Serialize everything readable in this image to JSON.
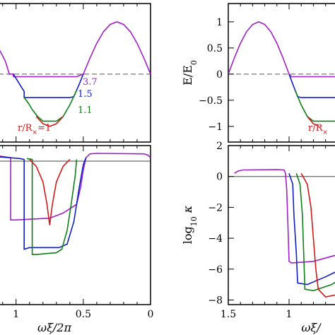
{
  "chart_data": [
    {
      "type": "line",
      "panel": "top-left",
      "x_axis_reversed": true,
      "ylabel": "",
      "xlim": [
        0,
        1.13
      ],
      "ylim": [
        -1.3,
        1.35
      ],
      "y_ticks": [],
      "reference_line": {
        "y": 0,
        "style": "dashed"
      },
      "series": [
        {
          "name": "3.7",
          "color": "#a020c8",
          "points": [
            [
              0,
              0
            ],
            [
              0.05,
              0.31
            ],
            [
              0.1,
              0.59
            ],
            [
              0.15,
              0.81
            ],
            [
              0.2,
              0.95
            ],
            [
              0.25,
              1.0
            ],
            [
              0.3,
              0.95
            ],
            [
              0.35,
              0.81
            ],
            [
              0.4,
              0.59
            ],
            [
              0.45,
              0.31
            ],
            [
              0.5,
              0
            ],
            [
              0.55,
              -0.05
            ],
            [
              1.0,
              -0.05
            ],
            [
              1.02,
              -0.05
            ],
            [
              1.02,
              0
            ],
            [
              1.05,
              0
            ],
            [
              1.08,
              0.25
            ],
            [
              1.12,
              0.45
            ]
          ]
        },
        {
          "name": "1.5",
          "color": "#1020c0",
          "points": [
            [
              0.5,
              0
            ],
            [
              0.53,
              -0.19
            ],
            [
              0.57,
              -0.43
            ],
            [
              0.6,
              -0.45
            ],
            [
              0.91,
              -0.45
            ],
            [
              0.94,
              -0.45
            ],
            [
              0.94,
              -0.33
            ],
            [
              0.96,
              -0.25
            ],
            [
              1.02,
              0
            ]
          ]
        },
        {
          "name": "1.1",
          "color": "#108018",
          "points": [
            [
              0.55,
              -0.31
            ],
            [
              0.6,
              -0.59
            ],
            [
              0.65,
              -0.81
            ],
            [
              0.7,
              -0.9
            ],
            [
              0.8,
              -0.9
            ],
            [
              0.84,
              -0.81
            ],
            [
              0.88,
              -0.68
            ],
            [
              0.91,
              -0.55
            ],
            [
              0.94,
              -0.45
            ]
          ]
        },
        {
          "name": "r/Rx=1",
          "color": "#d01818",
          "points": [
            [
              0.65,
              -0.81
            ],
            [
              0.7,
              -0.95
            ],
            [
              0.75,
              -1.0
            ],
            [
              0.8,
              -0.95
            ],
            [
              0.85,
              -0.81
            ]
          ]
        }
      ],
      "annotations": [
        {
          "text": "3.7",
          "color": "#a020c8"
        },
        {
          "text": "1.5",
          "color": "#1020c0"
        },
        {
          "text": "1.1",
          "color": "#108018"
        },
        {
          "text": "r/R",
          "subscript": "×",
          "suffix": "=1",
          "color": "#d01818"
        }
      ]
    },
    {
      "type": "line",
      "panel": "bottom-left",
      "x_axis_reversed": true,
      "xlabel": "ωξ/2π",
      "xlim": [
        0,
        1.13
      ],
      "ylim": [
        -8.3,
        0.9
      ],
      "x_ticks": [
        {
          "value": 1,
          "label": "1"
        },
        {
          "value": 0.5,
          "label": "0.5"
        },
        {
          "value": 0,
          "label": "0"
        }
      ],
      "reference_line": {
        "y": 0,
        "style": "solid"
      },
      "series": [
        {
          "name": "3.7",
          "color": "#a020c8",
          "points": [
            [
              0,
              0.2
            ],
            [
              0.02,
              0.35
            ],
            [
              0.05,
              0.42
            ],
            [
              0.4,
              0.45
            ],
            [
              0.45,
              0.42
            ],
            [
              0.48,
              0.2
            ],
            [
              0.5,
              -0.5
            ],
            [
              0.52,
              -1.5
            ],
            [
              0.55,
              -2.5
            ],
            [
              0.65,
              -3.0
            ],
            [
              0.75,
              -3.3
            ],
            [
              1.0,
              -3.4
            ],
            [
              1.04,
              -3.4
            ],
            [
              1.04,
              0.2
            ],
            [
              1.13,
              0.3
            ]
          ]
        },
        {
          "name": "1.5",
          "color": "#1020c0",
          "points": [
            [
              0.48,
              0.2
            ],
            [
              0.5,
              -0.2
            ],
            [
              0.53,
              -1.5
            ],
            [
              0.57,
              -3.5
            ],
            [
              0.62,
              -4.8
            ],
            [
              0.68,
              -5.0
            ],
            [
              0.9,
              -5.0
            ],
            [
              0.94,
              -5.1
            ],
            [
              0.94,
              0.1
            ],
            [
              0.97,
              0.15
            ],
            [
              1.13,
              0.25
            ]
          ]
        },
        {
          "name": "1.1",
          "color": "#108018",
          "points": [
            [
              0.55,
              0.1
            ],
            [
              0.56,
              -0.8
            ],
            [
              0.59,
              -2.5
            ],
            [
              0.62,
              -4.0
            ],
            [
              0.66,
              -5.1
            ],
            [
              0.7,
              -5.3
            ],
            [
              0.85,
              -5.4
            ],
            [
              0.88,
              -5.4
            ],
            [
              0.88,
              0.1
            ],
            [
              0.92,
              0.15
            ]
          ]
        },
        {
          "name": "r/Rx=1",
          "color": "#d01818",
          "points": [
            [
              0.6,
              0.1
            ],
            [
              0.65,
              -0.3
            ],
            [
              0.7,
              -1.2
            ],
            [
              0.73,
              -2.5
            ],
            [
              0.75,
              -3.7
            ],
            [
              0.77,
              -2.5
            ],
            [
              0.8,
              -1.2
            ],
            [
              0.85,
              -0.3
            ],
            [
              0.9,
              0.1
            ]
          ]
        }
      ]
    },
    {
      "type": "line",
      "panel": "top-right",
      "x_axis_reversed": true,
      "ylabel": "E/E",
      "ylabel_subscript": "0",
      "xlim": [
        0.57,
        1.5
      ],
      "ylim": [
        -1.3,
        1.35
      ],
      "y_ticks": [
        {
          "value": 1,
          "label": "1"
        },
        {
          "value": 0.5,
          "label": "0.5"
        },
        {
          "value": 0,
          "label": "0"
        },
        {
          "value": -0.5,
          "label": "−0.5"
        },
        {
          "value": -1,
          "label": "−1"
        }
      ],
      "reference_line": {
        "y": 0,
        "style": "dashed"
      },
      "series": [
        {
          "name": "3.7",
          "color": "#a020c8",
          "points": [
            [
              1.5,
              0
            ],
            [
              1.45,
              0.31
            ],
            [
              1.4,
              0.59
            ],
            [
              1.35,
              0.81
            ],
            [
              1.3,
              0.95
            ],
            [
              1.25,
              1.0
            ],
            [
              1.2,
              0.95
            ],
            [
              1.15,
              0.81
            ],
            [
              1.1,
              0.59
            ],
            [
              1.05,
              0.31
            ],
            [
              1.0,
              0
            ],
            [
              0.98,
              -0.05
            ],
            [
              0.57,
              -0.05
            ]
          ]
        },
        {
          "name": "1.5",
          "color": "#1020c0",
          "points": [
            [
              1.0,
              0
            ],
            [
              0.97,
              -0.19
            ],
            [
              0.93,
              -0.43
            ],
            [
              0.9,
              -0.45
            ],
            [
              0.57,
              -0.45
            ]
          ]
        },
        {
          "name": "1.1",
          "color": "#108018",
          "points": [
            [
              0.95,
              -0.31
            ],
            [
              0.9,
              -0.59
            ],
            [
              0.85,
              -0.81
            ],
            [
              0.8,
              -0.9
            ],
            [
              0.57,
              -0.9
            ]
          ]
        },
        {
          "name": "r/Rx=1",
          "color": "#d01818",
          "points": [
            [
              0.85,
              -0.81
            ],
            [
              0.8,
              -0.95
            ],
            [
              0.75,
              -1.0
            ]
          ]
        }
      ],
      "annotations": [
        {
          "text": "r/R",
          "subscript": "×",
          "color": "#d01818"
        }
      ]
    },
    {
      "type": "line",
      "panel": "bottom-right",
      "x_axis_reversed": true,
      "ylabel": "log",
      "ylabel_subscript": "10",
      "ylabel_suffix": " κ",
      "xlabel": "ωξ/",
      "xlim": [
        0.57,
        1.5
      ],
      "ylim": [
        -8.3,
        2.0
      ],
      "x_ticks": [
        {
          "value": 1.5,
          "label": "1.5"
        },
        {
          "value": 1,
          "label": "1"
        }
      ],
      "y_ticks": [
        {
          "value": 2,
          "label": "2"
        },
        {
          "value": 0,
          "label": "0"
        },
        {
          "value": -2,
          "label": "−2"
        },
        {
          "value": -4,
          "label": "−4"
        },
        {
          "value": -6,
          "label": "−6"
        },
        {
          "value": -8,
          "label": "−8"
        }
      ],
      "reference_line": {
        "y": 0,
        "style": "solid"
      },
      "series": [
        {
          "name": "3.7",
          "color": "#a020c8",
          "points": [
            [
              1.45,
              0.2
            ],
            [
              1.42,
              0.35
            ],
            [
              1.38,
              0.42
            ],
            [
              1.1,
              0.45
            ],
            [
              1.04,
              0.42
            ],
            [
              1.03,
              0.2
            ],
            [
              1.02,
              -0.8
            ],
            [
              1.01,
              -3.0
            ],
            [
              1.0,
              -5.5
            ],
            [
              0.98,
              -5.6
            ],
            [
              0.8,
              -5.5
            ],
            [
              0.57,
              -5.0
            ]
          ]
        },
        {
          "name": "1.5",
          "color": "#1020c0",
          "points": [
            [
              1.0,
              0.2
            ],
            [
              0.97,
              -0.5
            ],
            [
              0.96,
              -2.5
            ],
            [
              0.94,
              -5.0
            ],
            [
              0.93,
              -6.9
            ],
            [
              0.85,
              -7.0
            ],
            [
              0.7,
              -6.5
            ],
            [
              0.57,
              -6.0
            ]
          ]
        },
        {
          "name": "1.1",
          "color": "#108018",
          "points": [
            [
              0.94,
              0.2
            ],
            [
              0.91,
              -0.5
            ],
            [
              0.89,
              -2.5
            ],
            [
              0.88,
              -5.0
            ],
            [
              0.87,
              -7.3
            ],
            [
              0.8,
              -7.4
            ],
            [
              0.65,
              -7.0
            ],
            [
              0.57,
              -6.6
            ]
          ]
        },
        {
          "name": "r/Rx=1",
          "color": "#d01818",
          "points": [
            [
              0.9,
              0.2
            ],
            [
              0.85,
              -0.5
            ],
            [
              0.82,
              -2.0
            ],
            [
              0.8,
              -4.0
            ],
            [
              0.78,
              -6.0
            ],
            [
              0.76,
              -7.3
            ],
            [
              0.7,
              -7.8
            ],
            [
              0.57,
              -7.6
            ]
          ]
        }
      ]
    }
  ]
}
